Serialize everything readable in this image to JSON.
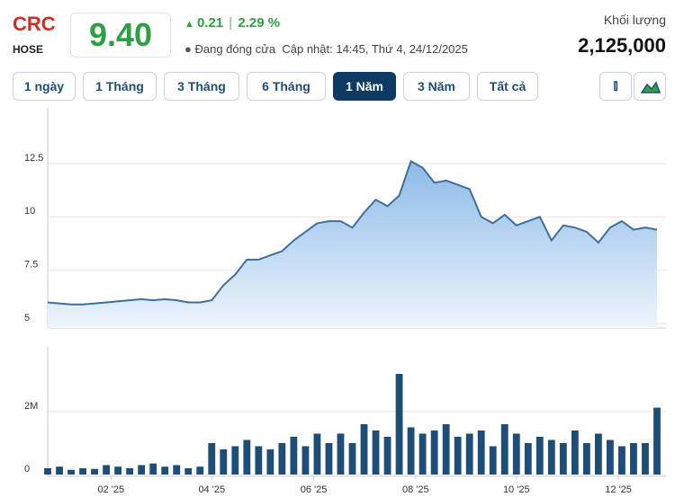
{
  "header": {
    "symbol": "CRC",
    "exchange": "HOSE",
    "price": "9.40",
    "change": "0.21",
    "change_pct": "2.29 %",
    "status": "Đang đóng cửa",
    "updated": "Cập nhật: 14:45, Thứ 4, 24/12/2025",
    "volume_label": "Khối lượng",
    "volume": "2,125,000"
  },
  "ranges": [
    "1 ngày",
    "1 Tháng",
    "3 Tháng",
    "6 Tháng",
    "1 Năm",
    "3 Năm",
    "Tất cả"
  ],
  "active_range": 4,
  "chart_data": [
    {
      "type": "area",
      "color": "#3f6f9f",
      "x": [
        0,
        1,
        2,
        3,
        4,
        5,
        6,
        7,
        8,
        9,
        10,
        11,
        12,
        13,
        14,
        15,
        16,
        17,
        18,
        19,
        20,
        21,
        22,
        23,
        24,
        25,
        26,
        27,
        28,
        29,
        30,
        31,
        32,
        33,
        34,
        35,
        36,
        37,
        38,
        39,
        40,
        41,
        42,
        43,
        44,
        45,
        46,
        47,
        48,
        49,
        50,
        51,
        52
      ],
      "values": [
        6.0,
        5.95,
        5.9,
        5.9,
        5.95,
        6.0,
        6.05,
        6.1,
        6.15,
        6.1,
        6.15,
        6.1,
        6.0,
        6.0,
        6.1,
        6.8,
        7.3,
        8.0,
        8.0,
        8.2,
        8.4,
        8.9,
        9.3,
        9.7,
        9.8,
        9.8,
        9.5,
        10.2,
        10.8,
        10.5,
        11.0,
        12.6,
        12.3,
        11.6,
        11.7,
        11.5,
        11.3,
        10.0,
        9.7,
        10.1,
        9.6,
        9.8,
        10.0,
        8.9,
        9.6,
        9.5,
        9.3,
        8.8,
        9.5,
        9.8,
        9.4,
        9.5,
        9.4
      ],
      "xlim": [
        0,
        52
      ],
      "ylim": [
        4.8,
        15.1
      ],
      "yticks": [
        5,
        7.5,
        10,
        12.5
      ],
      "grid": true
    },
    {
      "type": "bar",
      "color": "#1e4d78",
      "x": [
        0,
        1,
        2,
        3,
        4,
        5,
        6,
        7,
        8,
        9,
        10,
        11,
        12,
        13,
        14,
        15,
        16,
        17,
        18,
        19,
        20,
        21,
        22,
        23,
        24,
        25,
        26,
        27,
        28,
        29,
        30,
        31,
        32,
        33,
        34,
        35,
        36,
        37,
        38,
        39,
        40,
        41,
        42,
        43,
        44,
        45,
        46,
        47,
        48,
        49,
        50,
        51,
        52
      ],
      "values": [
        200000,
        250000,
        150000,
        200000,
        180000,
        300000,
        250000,
        200000,
        300000,
        350000,
        250000,
        300000,
        200000,
        250000,
        1000000,
        800000,
        900000,
        1100000,
        900000,
        800000,
        1000000,
        1200000,
        900000,
        1300000,
        1000000,
        1300000,
        1000000,
        1600000,
        1400000,
        1200000,
        3200000,
        1500000,
        1300000,
        1400000,
        1600000,
        1200000,
        1300000,
        1400000,
        900000,
        1600000,
        1300000,
        1000000,
        1200000,
        1100000,
        1000000,
        1400000,
        1000000,
        1300000,
        1100000,
        900000,
        1000000,
        1000000,
        2125000
      ],
      "xlim": [
        0,
        52
      ],
      "ylim": [
        0,
        4000000
      ],
      "yticks": [
        0,
        {
          "value": 2000000,
          "label": "2M"
        }
      ],
      "xticks": [
        {
          "value": 5.4,
          "label": "02 '25"
        },
        {
          "value": 14,
          "label": "04 '25"
        },
        {
          "value": 22.7,
          "label": "06 '25"
        },
        {
          "value": 31.4,
          "label": "08 '25"
        },
        {
          "value": 40,
          "label": "10 '25"
        },
        {
          "value": 48.7,
          "label": "12 '25"
        }
      ]
    }
  ]
}
